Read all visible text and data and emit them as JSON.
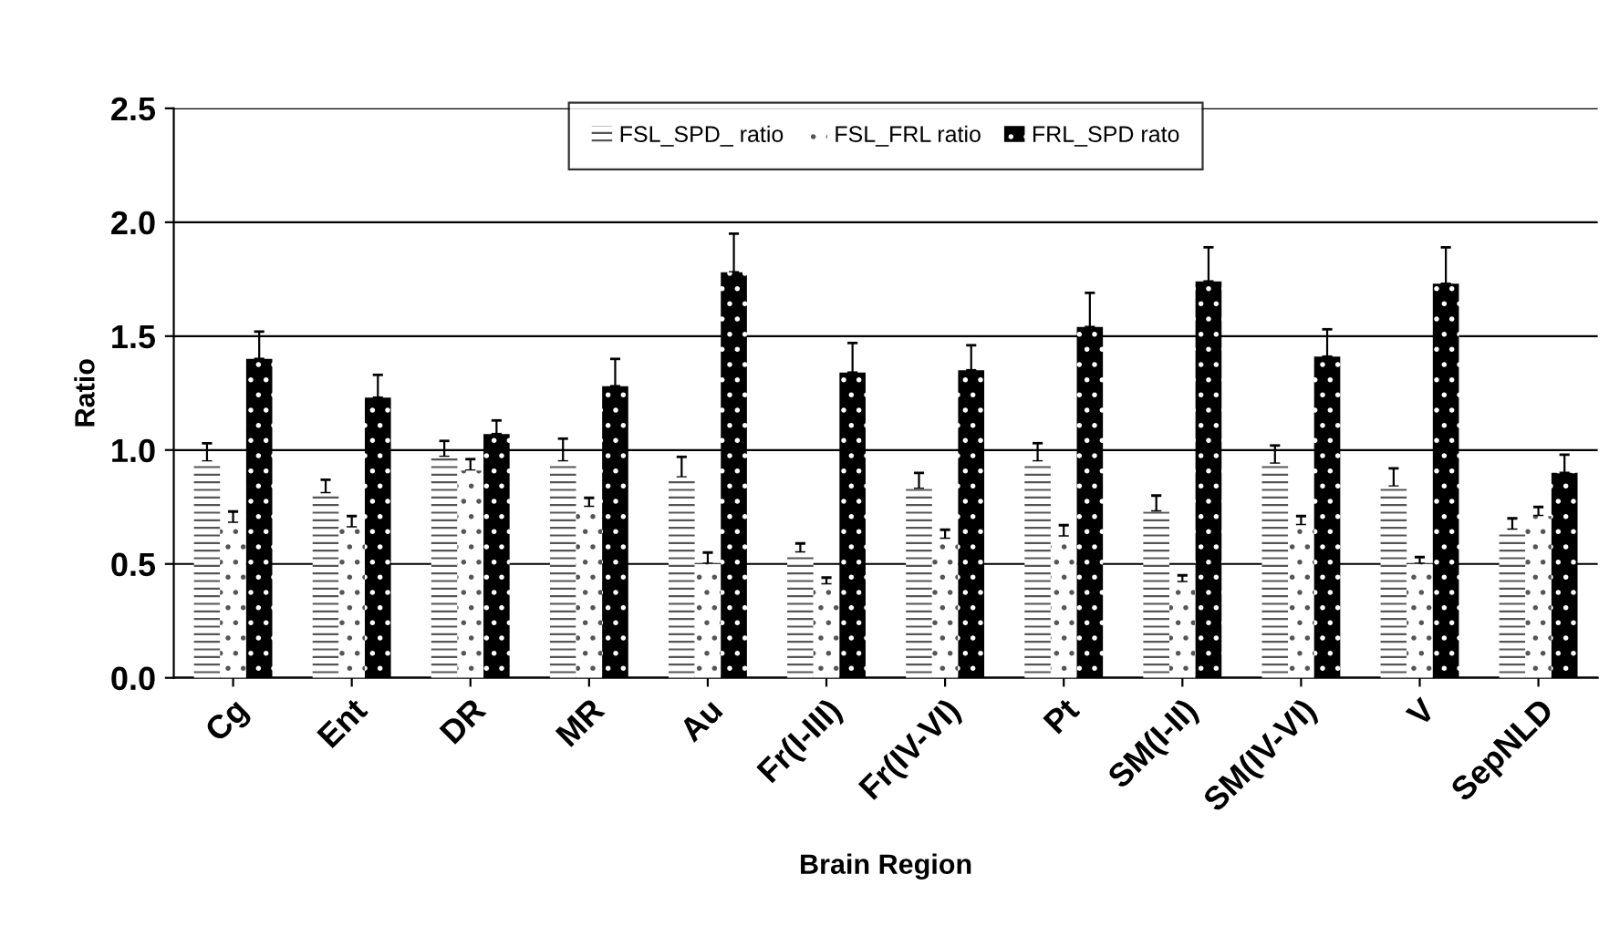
{
  "chart_data": {
    "type": "bar",
    "xlabel": "Brain Region",
    "ylabel": "Ratio",
    "categories": [
      "Cg",
      "Ent",
      "DR",
      "MR",
      "Au",
      "Fr(I-III)",
      "Fr(IV-VI)",
      "Pt",
      "SM(I-II)",
      "SM(IV-VI)",
      "V",
      "SepNLD"
    ],
    "series": [
      {
        "name": "FSL_SPD_ ratio",
        "color": "#ffffff",
        "values": [
          0.95,
          0.81,
          0.97,
          0.95,
          0.88,
          0.55,
          0.83,
          0.95,
          0.73,
          0.94,
          0.84,
          0.65
        ],
        "errors": [
          [
            0.95,
            1.03
          ],
          [
            0.81,
            0.87
          ],
          [
            0.97,
            1.04
          ],
          [
            0.95,
            1.05
          ],
          [
            0.88,
            0.97
          ],
          [
            0.55,
            0.59
          ],
          [
            0.83,
            0.9
          ],
          [
            0.95,
            1.03
          ],
          [
            0.73,
            0.8
          ],
          [
            0.94,
            1.02
          ],
          [
            0.84,
            0.92
          ],
          [
            0.65,
            0.7
          ]
        ]
      },
      {
        "name": "FSL_FRL ratio",
        "color": "#ffffff",
        "values": [
          0.68,
          0.66,
          0.91,
          0.75,
          0.5,
          0.41,
          0.61,
          0.62,
          0.42,
          0.67,
          0.5,
          0.71
        ],
        "errors": [
          [
            0.68,
            0.73
          ],
          [
            0.66,
            0.71
          ],
          [
            0.91,
            0.96
          ],
          [
            0.75,
            0.79
          ],
          [
            0.5,
            0.55
          ],
          [
            0.41,
            0.44
          ],
          [
            0.61,
            0.65
          ],
          [
            0.62,
            0.67
          ],
          [
            0.42,
            0.45
          ],
          [
            0.67,
            0.71
          ],
          [
            0.5,
            0.53
          ],
          [
            0.71,
            0.75
          ]
        ]
      },
      {
        "name": "FRL_SPD rato",
        "color": "#000000",
        "values": [
          1.4,
          1.23,
          1.07,
          1.28,
          1.78,
          1.34,
          1.35,
          1.54,
          1.74,
          1.41,
          1.73,
          0.9
        ],
        "errors": [
          [
            1.4,
            1.52
          ],
          [
            1.23,
            1.33
          ],
          [
            1.07,
            1.13
          ],
          [
            1.28,
            1.4
          ],
          [
            1.78,
            1.95
          ],
          [
            1.34,
            1.47
          ],
          [
            1.35,
            1.46
          ],
          [
            1.54,
            1.69
          ],
          [
            1.74,
            1.89
          ],
          [
            1.41,
            1.53
          ],
          [
            1.73,
            1.89
          ],
          [
            0.9,
            0.98
          ]
        ]
      }
    ],
    "ylim": [
      0,
      2.5
    ],
    "yticks": [
      {
        "value": 0,
        "label": "0.0"
      },
      {
        "value": 0.5,
        "label": "0.5"
      },
      {
        "value": 1,
        "label": "1.0"
      },
      {
        "value": 1.5,
        "label": "1.5"
      },
      {
        "value": 2,
        "label": "2.0"
      },
      {
        "value": 2.5,
        "label": "2.5"
      }
    ],
    "grid": "y",
    "legend": "top"
  }
}
